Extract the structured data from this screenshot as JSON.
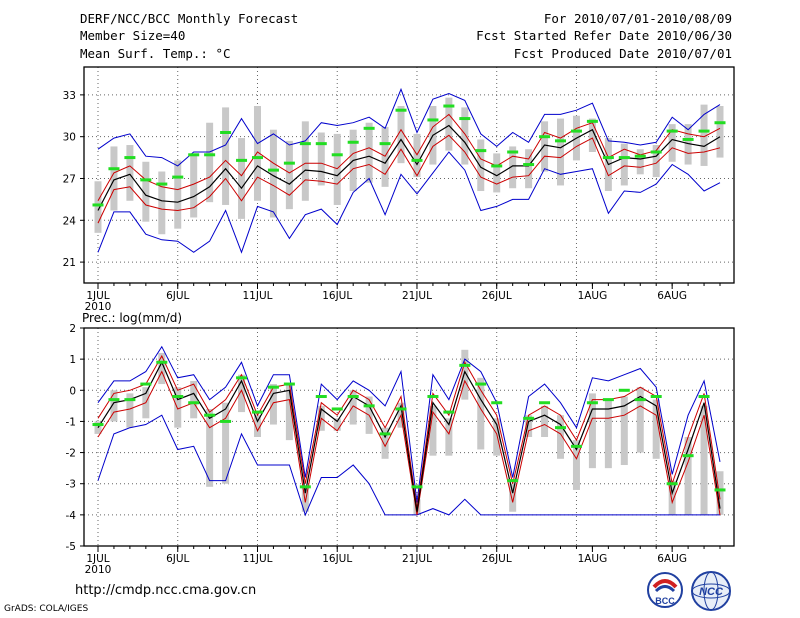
{
  "header": {
    "title": "DERF/NCC/BCC Monthly Forecast",
    "member": "Member Size=40",
    "variable": "Mean Surf. Temp.: °C",
    "period": "For 2010/07/01-2010/08/09",
    "started": "Fcst Started Refer Date 2010/06/30",
    "produced": "Fcst Produced Date 2010/07/01"
  },
  "footer": {
    "url": "http://cmdp.ncc.cma.gov.cn",
    "credit": "GrADS: COLA/IGES",
    "logo_bcc_text": "BCC",
    "logo_ncc_text": "NCC"
  },
  "colors": {
    "max_min": "#0000cc",
    "upper_lower": "#cc0000",
    "mean": "#000000",
    "observed": "#22dd22",
    "box": "#c8c8c8",
    "grid": "#666666"
  },
  "chart_data": [
    {
      "type": "line",
      "title": "Mean Surf. Temp.: °C",
      "x": [
        1,
        2,
        3,
        4,
        5,
        6,
        7,
        8,
        9,
        10,
        11,
        12,
        13,
        14,
        15,
        16,
        17,
        18,
        19,
        20,
        21,
        22,
        23,
        24,
        25,
        26,
        27,
        28,
        29,
        30,
        31,
        32,
        33,
        34,
        35,
        36,
        37,
        38,
        39,
        40
      ],
      "xtick_labels": [
        "1JUL",
        "6JUL",
        "11JUL",
        "16JUL",
        "21JUL",
        "26JUL",
        "1AUG",
        "6AUG"
      ],
      "xtick_positions": [
        1,
        6,
        11,
        16,
        21,
        26,
        32,
        37
      ],
      "year_label": "2010",
      "ylim": [
        19.5,
        35
      ],
      "yticks": [
        21,
        24,
        27,
        30,
        33
      ],
      "series": [
        {
          "name": "max",
          "values": [
            29.1,
            29.9,
            30.2,
            28.6,
            28.5,
            27.9,
            28.9,
            28.9,
            29.4,
            31.3,
            29.5,
            30.2,
            29.4,
            29.7,
            31.0,
            30.8,
            31.0,
            31.4,
            30.6,
            33.4,
            30.3,
            32.7,
            33.1,
            32.6,
            30.2,
            29.3,
            30.3,
            29.6,
            31.6,
            31.6,
            31.9,
            32.4,
            29.7,
            29.6,
            29.4,
            29.6,
            31.4,
            30.5,
            31.6,
            32.3
          ]
        },
        {
          "name": "upper",
          "values": [
            25.4,
            27.4,
            27.9,
            26.9,
            26.4,
            26.2,
            26.6,
            27.1,
            28.3,
            27.2,
            28.9,
            28.1,
            27.4,
            28.1,
            28.1,
            27.7,
            28.8,
            29.2,
            28.6,
            30.5,
            28.7,
            30.7,
            31.6,
            30.2,
            28.4,
            27.9,
            28.6,
            28.4,
            30.3,
            29.9,
            30.6,
            31.0,
            28.5,
            29.1,
            28.7,
            29.0,
            30.5,
            30.2,
            30.0,
            30.6
          ]
        },
        {
          "name": "mean",
          "values": [
            24.7,
            26.9,
            27.3,
            25.8,
            25.4,
            25.3,
            25.7,
            26.4,
            27.7,
            26.3,
            27.9,
            27.2,
            26.6,
            27.6,
            27.5,
            27.2,
            28.3,
            28.6,
            28.1,
            29.8,
            28.0,
            30.1,
            30.8,
            29.6,
            27.8,
            27.2,
            27.9,
            27.9,
            29.4,
            29.2,
            29.9,
            30.5,
            28.0,
            28.5,
            28.4,
            28.6,
            29.8,
            29.5,
            29.3,
            30.0
          ]
        },
        {
          "name": "lower",
          "values": [
            23.8,
            26.2,
            26.4,
            25.1,
            24.8,
            24.7,
            24.9,
            25.7,
            27.0,
            25.4,
            27.1,
            26.5,
            25.8,
            26.9,
            26.8,
            26.6,
            27.7,
            28.0,
            27.3,
            29.1,
            27.2,
            29.3,
            30.1,
            28.9,
            27.1,
            26.6,
            27.1,
            27.2,
            28.6,
            28.5,
            29.3,
            29.9,
            27.2,
            27.9,
            27.8,
            28.1,
            29.2,
            28.8,
            28.9,
            29.2
          ]
        },
        {
          "name": "min",
          "values": [
            21.7,
            24.6,
            24.6,
            23.0,
            22.6,
            22.5,
            21.7,
            22.5,
            24.7,
            21.7,
            25.0,
            24.6,
            22.7,
            24.4,
            24.8,
            23.7,
            26.0,
            27.0,
            24.4,
            27.3,
            25.9,
            27.4,
            28.9,
            27.6,
            24.7,
            25.0,
            25.5,
            25.5,
            27.7,
            27.3,
            27.5,
            27.7,
            24.5,
            26.1,
            26.0,
            26.6,
            28.0,
            27.3,
            26.1,
            26.7
          ]
        },
        {
          "name": "observed",
          "values": [
            25.1,
            27.7,
            28.5,
            26.9,
            26.6,
            27.1,
            28.7,
            28.7,
            30.3,
            28.3,
            28.5,
            27.6,
            28.1,
            29.5,
            29.5,
            28.7,
            29.6,
            30.6,
            29.5,
            31.9,
            28.3,
            31.2,
            32.2,
            31.3,
            29.0,
            27.9,
            28.9,
            28.0,
            30.0,
            29.7,
            30.4,
            31.1,
            28.5,
            28.5,
            28.6,
            28.9,
            30.4,
            29.8,
            30.4,
            31.0
          ]
        },
        {
          "name": "box_top",
          "values": [
            26.8,
            29.3,
            29.4,
            28.2,
            27.5,
            28.3,
            28.7,
            31.0,
            32.1,
            29.9,
            32.2,
            30.5,
            29.7,
            31.1,
            30.3,
            30.2,
            30.5,
            31.0,
            30.7,
            32.2,
            30.2,
            32.2,
            32.8,
            32.1,
            29.8,
            28.8,
            29.3,
            29.1,
            31.1,
            31.3,
            31.5,
            31.3,
            29.9,
            29.5,
            29.1,
            29.4,
            30.9,
            30.9,
            32.3,
            32.2
          ]
        },
        {
          "name": "box_bottom",
          "values": [
            23.1,
            24.7,
            25.4,
            23.9,
            23.0,
            23.4,
            24.2,
            25.3,
            25.1,
            24.1,
            25.4,
            24.2,
            24.8,
            25.4,
            26.5,
            25.1,
            26.1,
            26.7,
            26.4,
            28.1,
            27.1,
            28.0,
            29.0,
            28.0,
            26.1,
            26.0,
            26.3,
            26.3,
            27.5,
            26.5,
            28.3,
            28.9,
            26.1,
            26.5,
            27.3,
            27.1,
            28.2,
            28.0,
            27.9,
            28.5
          ]
        }
      ]
    },
    {
      "type": "line",
      "title": "Prec.: log(mm/d)",
      "x": [
        1,
        2,
        3,
        4,
        5,
        6,
        7,
        8,
        9,
        10,
        11,
        12,
        13,
        14,
        15,
        16,
        17,
        18,
        19,
        20,
        21,
        22,
        23,
        24,
        25,
        26,
        27,
        28,
        29,
        30,
        31,
        32,
        33,
        34,
        35,
        36,
        37,
        38,
        39,
        40
      ],
      "xtick_labels": [
        "1JUL",
        "6JUL",
        "11JUL",
        "16JUL",
        "21JUL",
        "26JUL",
        "1AUG",
        "6AUG"
      ],
      "xtick_positions": [
        1,
        6,
        11,
        16,
        21,
        26,
        32,
        37
      ],
      "year_label": "2010",
      "ylim": [
        -5,
        2
      ],
      "yticks": [
        -5,
        -4,
        -3,
        -2,
        -1,
        0,
        1,
        2
      ],
      "series": [
        {
          "name": "max",
          "values": [
            -0.4,
            0.3,
            0.3,
            0.6,
            1.4,
            0.4,
            0.5,
            -0.3,
            0.1,
            0.9,
            -0.5,
            0.5,
            0.5,
            -2.8,
            0.2,
            -0.3,
            0.3,
            0.0,
            -0.5,
            0.6,
            -3.6,
            0.5,
            -0.3,
            1.0,
            0.6,
            -0.4,
            -2.8,
            -0.2,
            0.2,
            -0.4,
            -1.2,
            0.4,
            0.3,
            0.5,
            0.7,
            0.1,
            -2.7,
            -0.8,
            0.3,
            -2.3
          ]
        },
        {
          "name": "upper",
          "values": [
            -0.9,
            -0.1,
            0.0,
            0.2,
            1.1,
            0.0,
            0.2,
            -0.7,
            -0.3,
            0.5,
            -0.8,
            0.1,
            0.2,
            -3.0,
            -0.4,
            -0.8,
            0.0,
            -0.3,
            -1.2,
            -0.2,
            -3.8,
            -0.1,
            -0.8,
            0.9,
            0.0,
            -0.8,
            -3.0,
            -0.8,
            -0.5,
            -0.8,
            -1.6,
            -0.3,
            -0.3,
            -0.2,
            0.1,
            -0.2,
            -3.0,
            -1.5,
            -0.1,
            -3.5
          ]
        },
        {
          "name": "mean",
          "values": [
            -1.2,
            -0.4,
            -0.3,
            -0.1,
            0.9,
            -0.3,
            -0.1,
            -0.9,
            -0.6,
            0.3,
            -1.0,
            -0.1,
            0.0,
            -3.3,
            -0.6,
            -1.0,
            -0.2,
            -0.5,
            -1.5,
            -0.5,
            -3.9,
            -0.4,
            -1.1,
            0.6,
            -0.3,
            -1.1,
            -3.3,
            -1.0,
            -0.8,
            -1.1,
            -1.9,
            -0.6,
            -0.6,
            -0.5,
            -0.2,
            -0.5,
            -3.3,
            -1.9,
            -0.4,
            -3.8
          ]
        },
        {
          "name": "lower",
          "values": [
            -1.5,
            -0.7,
            -0.6,
            -0.4,
            0.6,
            -0.6,
            -0.4,
            -1.2,
            -0.9,
            0.0,
            -1.3,
            -0.4,
            -0.3,
            -3.6,
            -0.9,
            -1.3,
            -0.5,
            -0.8,
            -1.8,
            -0.8,
            -4.0,
            -0.7,
            -1.4,
            0.3,
            -0.6,
            -1.4,
            -3.6,
            -1.3,
            -1.1,
            -1.4,
            -2.2,
            -0.9,
            -0.9,
            -0.8,
            -0.5,
            -0.8,
            -3.6,
            -2.3,
            -0.8,
            -4.0
          ]
        },
        {
          "name": "min",
          "values": [
            -2.9,
            -1.4,
            -1.2,
            -1.1,
            -0.8,
            -1.9,
            -1.8,
            -2.9,
            -2.9,
            -1.4,
            -2.4,
            -2.4,
            -2.4,
            -4.0,
            -2.8,
            -2.8,
            -2.4,
            -3.0,
            -4.0,
            -4.0,
            -4.0,
            -3.8,
            -4.0,
            -3.5,
            -4.0,
            -4.0,
            -4.0,
            -4.0,
            -4.0,
            -4.0,
            -4.0,
            -4.0,
            -4.0,
            -4.0,
            -4.0,
            -4.0,
            -4.0,
            -4.0,
            -4.0,
            -4.0
          ]
        },
        {
          "name": "observed",
          "values": [
            -1.1,
            -0.3,
            -0.3,
            0.2,
            0.9,
            -0.2,
            -0.4,
            -0.8,
            -1.0,
            0.4,
            -0.7,
            0.1,
            0.2,
            -3.1,
            -0.2,
            -0.6,
            -0.2,
            -0.5,
            -1.4,
            -0.6,
            -3.1,
            -0.2,
            -0.7,
            0.8,
            0.2,
            -0.4,
            -2.9,
            -0.9,
            -0.4,
            -1.2,
            -1.8,
            -0.4,
            -0.3,
            0.0,
            -0.3,
            -0.2,
            -3.0,
            -2.1,
            -0.2,
            -3.2
          ]
        },
        {
          "name": "box_top",
          "values": [
            -1.0,
            0.0,
            -0.1,
            0.1,
            1.2,
            0.1,
            0.3,
            -0.6,
            -0.4,
            0.5,
            -0.8,
            0.2,
            0.2,
            -3.1,
            -0.5,
            -0.9,
            0.0,
            -0.2,
            -1.2,
            -0.4,
            -3.5,
            -0.5,
            -0.9,
            1.3,
            0.4,
            -0.9,
            -3.0,
            -0.8,
            -0.5,
            -0.8,
            -1.6,
            -0.1,
            -0.3,
            -0.2,
            0.1,
            -0.3,
            -2.9,
            -1.5,
            -0.5,
            -2.6
          ]
        },
        {
          "name": "box_bottom",
          "values": [
            -1.4,
            -1.0,
            -1.2,
            -0.9,
            0.2,
            -1.2,
            -0.9,
            -3.1,
            -3.0,
            -0.7,
            -1.5,
            -1.1,
            -1.6,
            -3.9,
            -1.3,
            -1.3,
            -1.1,
            -1.4,
            -2.2,
            -1.2,
            -4.0,
            -2.1,
            -2.1,
            -0.3,
            -1.9,
            -2.1,
            -3.9,
            -1.5,
            -1.5,
            -2.2,
            -3.2,
            -2.5,
            -2.5,
            -2.4,
            -2.0,
            -2.2,
            -4.0,
            -4.0,
            -4.0,
            -4.0
          ]
        }
      ]
    }
  ]
}
